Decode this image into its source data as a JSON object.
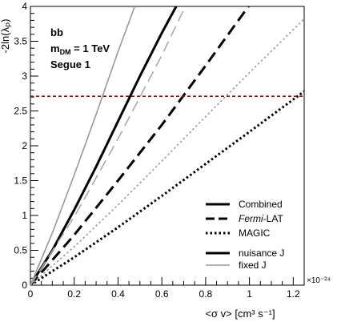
{
  "chart_data": {
    "type": "line",
    "ylabel_pre": "-2ln(",
    "ylabel_lambda": "λ",
    "ylabel_sub": "P",
    "ylabel_post": ")",
    "xlabel": "<σ v> [cm³ s⁻¹]",
    "x_exponent": "×10⁻²⁴",
    "xlim": [
      0,
      1.25
    ],
    "ylim": [
      0,
      4
    ],
    "x_ticks": [
      "0",
      "0.2",
      "0.4",
      "0.6",
      "0.8",
      "1",
      "1.2"
    ],
    "y_ticks": [
      "0",
      "0.5",
      "1",
      "1.5",
      "2",
      "2.5",
      "3",
      "3.5",
      "4"
    ],
    "grid": false,
    "legend_position": "bottom-right",
    "annotation": {
      "channel": "bb",
      "mass_prefix": "m",
      "mass_sub": "DM",
      "mass_value": " = 1 TeV",
      "target": "Segue 1"
    },
    "threshold": {
      "y": 2.71,
      "color": "#aa0000",
      "style": "dashed"
    },
    "series": [
      {
        "name": "Combined",
        "variant": "nuisance J",
        "dash": "solid",
        "color": "#000000",
        "x": [
          0,
          0.1,
          0.2,
          0.3,
          0.4,
          0.5,
          0.6,
          0.7
        ],
        "y": [
          0,
          0.5,
          1.08,
          1.7,
          2.35,
          3.0,
          3.62,
          4.2
        ]
      },
      {
        "name": "Fermi-LAT",
        "variant": "nuisance J",
        "dash": "longdash",
        "color": "#000000",
        "x": [
          0,
          0.2,
          0.4,
          0.6,
          0.8,
          1.0,
          1.1
        ],
        "y": [
          0,
          0.72,
          1.5,
          2.3,
          3.15,
          4.02,
          4.45
        ]
      },
      {
        "name": "MAGIC",
        "variant": "nuisance J",
        "dash": "dotted",
        "color": "#000000",
        "x": [
          0,
          0.2,
          0.4,
          0.6,
          0.8,
          1.0,
          1.25
        ],
        "y": [
          0,
          0.4,
          0.83,
          1.28,
          1.74,
          2.2,
          2.78
        ]
      },
      {
        "name": "Combined",
        "variant": "fixed J",
        "dash": "solid",
        "color": "#999999",
        "x": [
          0,
          0.1,
          0.2,
          0.3,
          0.4,
          0.5
        ],
        "y": [
          0,
          0.75,
          1.58,
          2.45,
          3.35,
          4.2
        ]
      },
      {
        "name": "Fermi-LAT",
        "variant": "fixed J",
        "dash": "longdash",
        "color": "#aaaaaa",
        "x": [
          0,
          0.2,
          0.4,
          0.6,
          0.7
        ],
        "y": [
          0,
          0.98,
          2.1,
          3.3,
          3.95
        ]
      },
      {
        "name": "MAGIC",
        "variant": "fixed J",
        "dash": "dotted",
        "color": "#999999",
        "x": [
          0,
          0.2,
          0.4,
          0.6,
          0.8,
          1.0,
          1.25
        ],
        "y": [
          0,
          0.55,
          1.15,
          1.78,
          2.42,
          3.05,
          3.82
        ]
      }
    ],
    "legend": [
      {
        "label_pre": "",
        "label_it": "",
        "label_post": "Combined",
        "dash": "solid",
        "color": "#000000",
        "width": 3
      },
      {
        "label_pre": "",
        "label_it": "Fermi",
        "label_post": "-LAT",
        "dash": "longdash",
        "color": "#000000",
        "width": 3
      },
      {
        "label_pre": "",
        "label_it": "",
        "label_post": "MAGIC",
        "dash": "dotted",
        "color": "#000000",
        "width": 3
      },
      {
        "label_pre": "",
        "label_it": "",
        "label_post": "nuisance J",
        "dash": "solid",
        "color": "#000000",
        "width": 3
      },
      {
        "label_pre": "",
        "label_it": "",
        "label_post": "fixed J",
        "dash": "solid",
        "color": "#999999",
        "width": 1.6
      }
    ]
  }
}
